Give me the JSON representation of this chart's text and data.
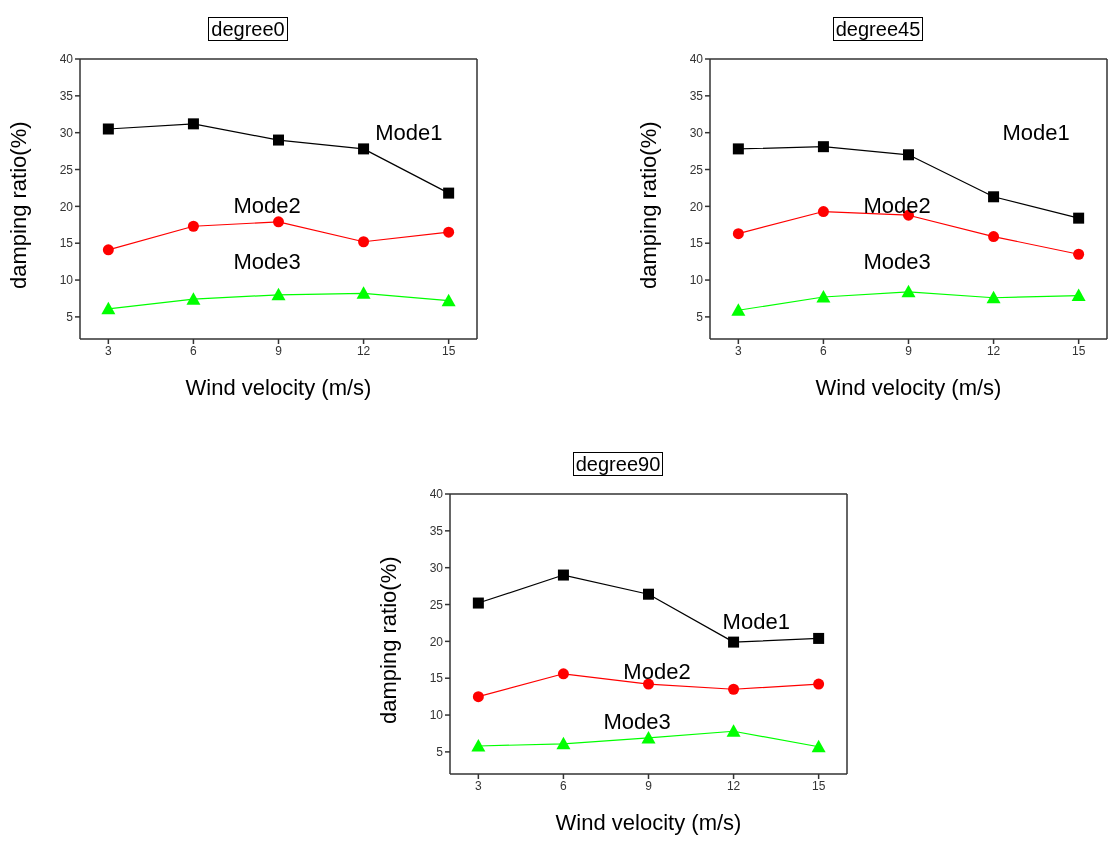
{
  "chart_data": [
    {
      "type": "line",
      "title": "degree0",
      "xlabel": "Wind velocity (m/s)",
      "ylabel": "damping ratio(%)",
      "x": [
        3,
        6,
        9,
        12,
        15
      ],
      "xlim": [
        2,
        16
      ],
      "xticks": [
        3,
        6,
        9,
        12,
        15
      ],
      "ylim": [
        2,
        40
      ],
      "yticks": [
        5,
        10,
        15,
        20,
        25,
        30,
        35,
        40
      ],
      "series": [
        {
          "name": "Mode1",
          "color": "#000000",
          "marker": "square",
          "values": [
            30.5,
            31.2,
            29.0,
            27.8,
            21.8
          ]
        },
        {
          "name": "Mode2",
          "color": "#ff0000",
          "marker": "circle",
          "values": [
            14.1,
            17.3,
            17.9,
            15.2,
            16.5
          ]
        },
        {
          "name": "Mode3",
          "color": "#00ff00",
          "marker": "triangle",
          "values": [
            6.1,
            7.4,
            8.0,
            8.2,
            7.2
          ]
        }
      ]
    },
    {
      "type": "line",
      "title": "degree45",
      "xlabel": "Wind velocity (m/s)",
      "ylabel": "damping ratio(%)",
      "x": [
        3,
        6,
        9,
        12,
        15
      ],
      "xlim": [
        2,
        16
      ],
      "xticks": [
        3,
        6,
        9,
        12,
        15
      ],
      "ylim": [
        2,
        40
      ],
      "yticks": [
        5,
        10,
        15,
        20,
        25,
        30,
        35,
        40
      ],
      "series": [
        {
          "name": "Mode1",
          "color": "#000000",
          "marker": "square",
          "values": [
            27.8,
            28.1,
            27.0,
            21.3,
            18.4
          ]
        },
        {
          "name": "Mode2",
          "color": "#ff0000",
          "marker": "circle",
          "values": [
            16.3,
            19.3,
            18.8,
            15.9,
            13.5
          ]
        },
        {
          "name": "Mode3",
          "color": "#00ff00",
          "marker": "triangle",
          "values": [
            5.9,
            7.7,
            8.4,
            7.6,
            7.9
          ]
        }
      ]
    },
    {
      "type": "line",
      "title": "degree90",
      "xlabel": "Wind velocity (m/s)",
      "ylabel": "damping ratio(%)",
      "x": [
        3,
        6,
        9,
        12,
        15
      ],
      "xlim": [
        2,
        16
      ],
      "xticks": [
        3,
        6,
        9,
        12,
        15
      ],
      "ylim": [
        2,
        40
      ],
      "yticks": [
        5,
        10,
        15,
        20,
        25,
        30,
        35,
        40
      ],
      "series": [
        {
          "name": "Mode1",
          "color": "#000000",
          "marker": "square",
          "values": [
            25.2,
            29.0,
            26.4,
            19.9,
            20.4
          ]
        },
        {
          "name": "Mode2",
          "color": "#ff0000",
          "marker": "circle",
          "values": [
            12.5,
            15.6,
            14.2,
            13.5,
            14.2
          ]
        },
        {
          "name": "Mode3",
          "color": "#00ff00",
          "marker": "triangle",
          "values": [
            5.8,
            6.1,
            6.9,
            7.8,
            5.7
          ]
        }
      ]
    }
  ]
}
